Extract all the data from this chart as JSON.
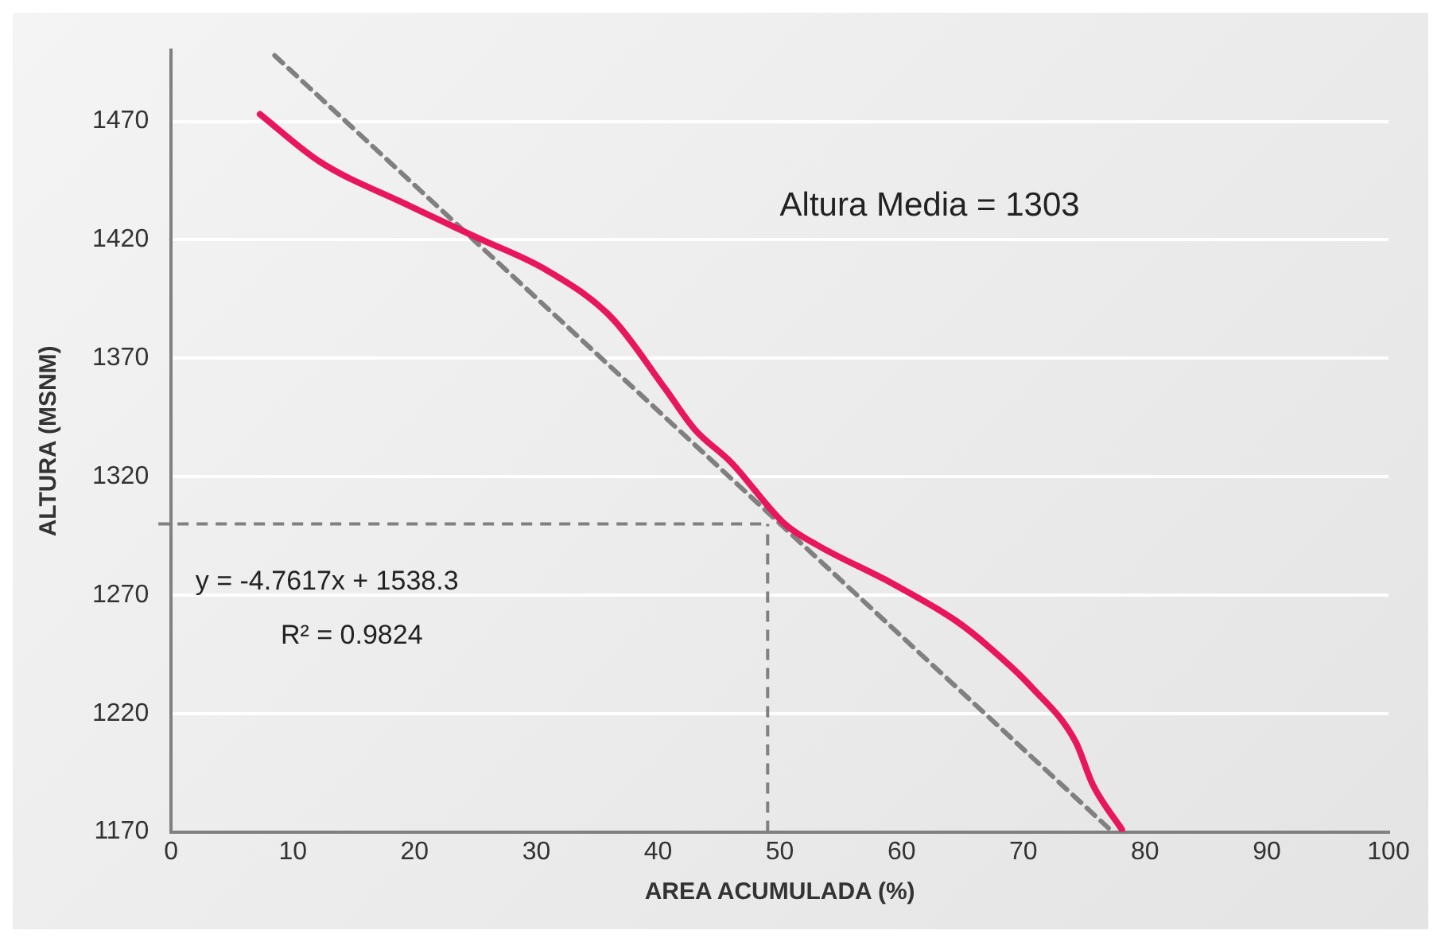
{
  "chart_data": {
    "type": "line",
    "xlabel": "AREA ACUMULADA (%)",
    "ylabel": "ALTURA (MSNM)",
    "series": [
      {
        "color": "#e8175d",
        "x": [
          7.3,
          12.2,
          19.3,
          25.1,
          30.9,
          36.2,
          40.6,
          43,
          46,
          50.4,
          53.1,
          59.2,
          64.5,
          67.2,
          70.7,
          74.3,
          75.7,
          78.1
        ],
        "values": [
          1473,
          1453,
          1435,
          1421,
          1407,
          1387,
          1357,
          1340,
          1326,
          1300,
          1291,
          1275,
          1259,
          1248,
          1231,
          1208,
          1190,
          1171
        ]
      },
      {
        "color": "#808080",
        "line_style": "dashed",
        "x": [
          8.5,
          77
        ],
        "values": [
          1497.8,
          1171.6
        ]
      }
    ],
    "ref_lines": [
      {
        "axis": "y",
        "value": 1300,
        "color": "#808080",
        "line_style": "dashed"
      },
      {
        "axis": "x",
        "value": 49,
        "color": "#808080",
        "line_style": "dashed"
      }
    ],
    "annotations": [
      "Altura Media = 1303",
      "y = -4.7617x + 1538.3",
      "R² = 0.9824"
    ],
    "xlim": [
      0,
      100
    ],
    "xticks": [
      0,
      10,
      20,
      30,
      40,
      50,
      60,
      70,
      80,
      90,
      100
    ],
    "ylim": [
      1170,
      1500
    ],
    "yticks": [
      1170,
      1220,
      1270,
      1320,
      1370,
      1420,
      1470
    ],
    "grid": "y",
    "legend": false,
    "marker": "none"
  }
}
